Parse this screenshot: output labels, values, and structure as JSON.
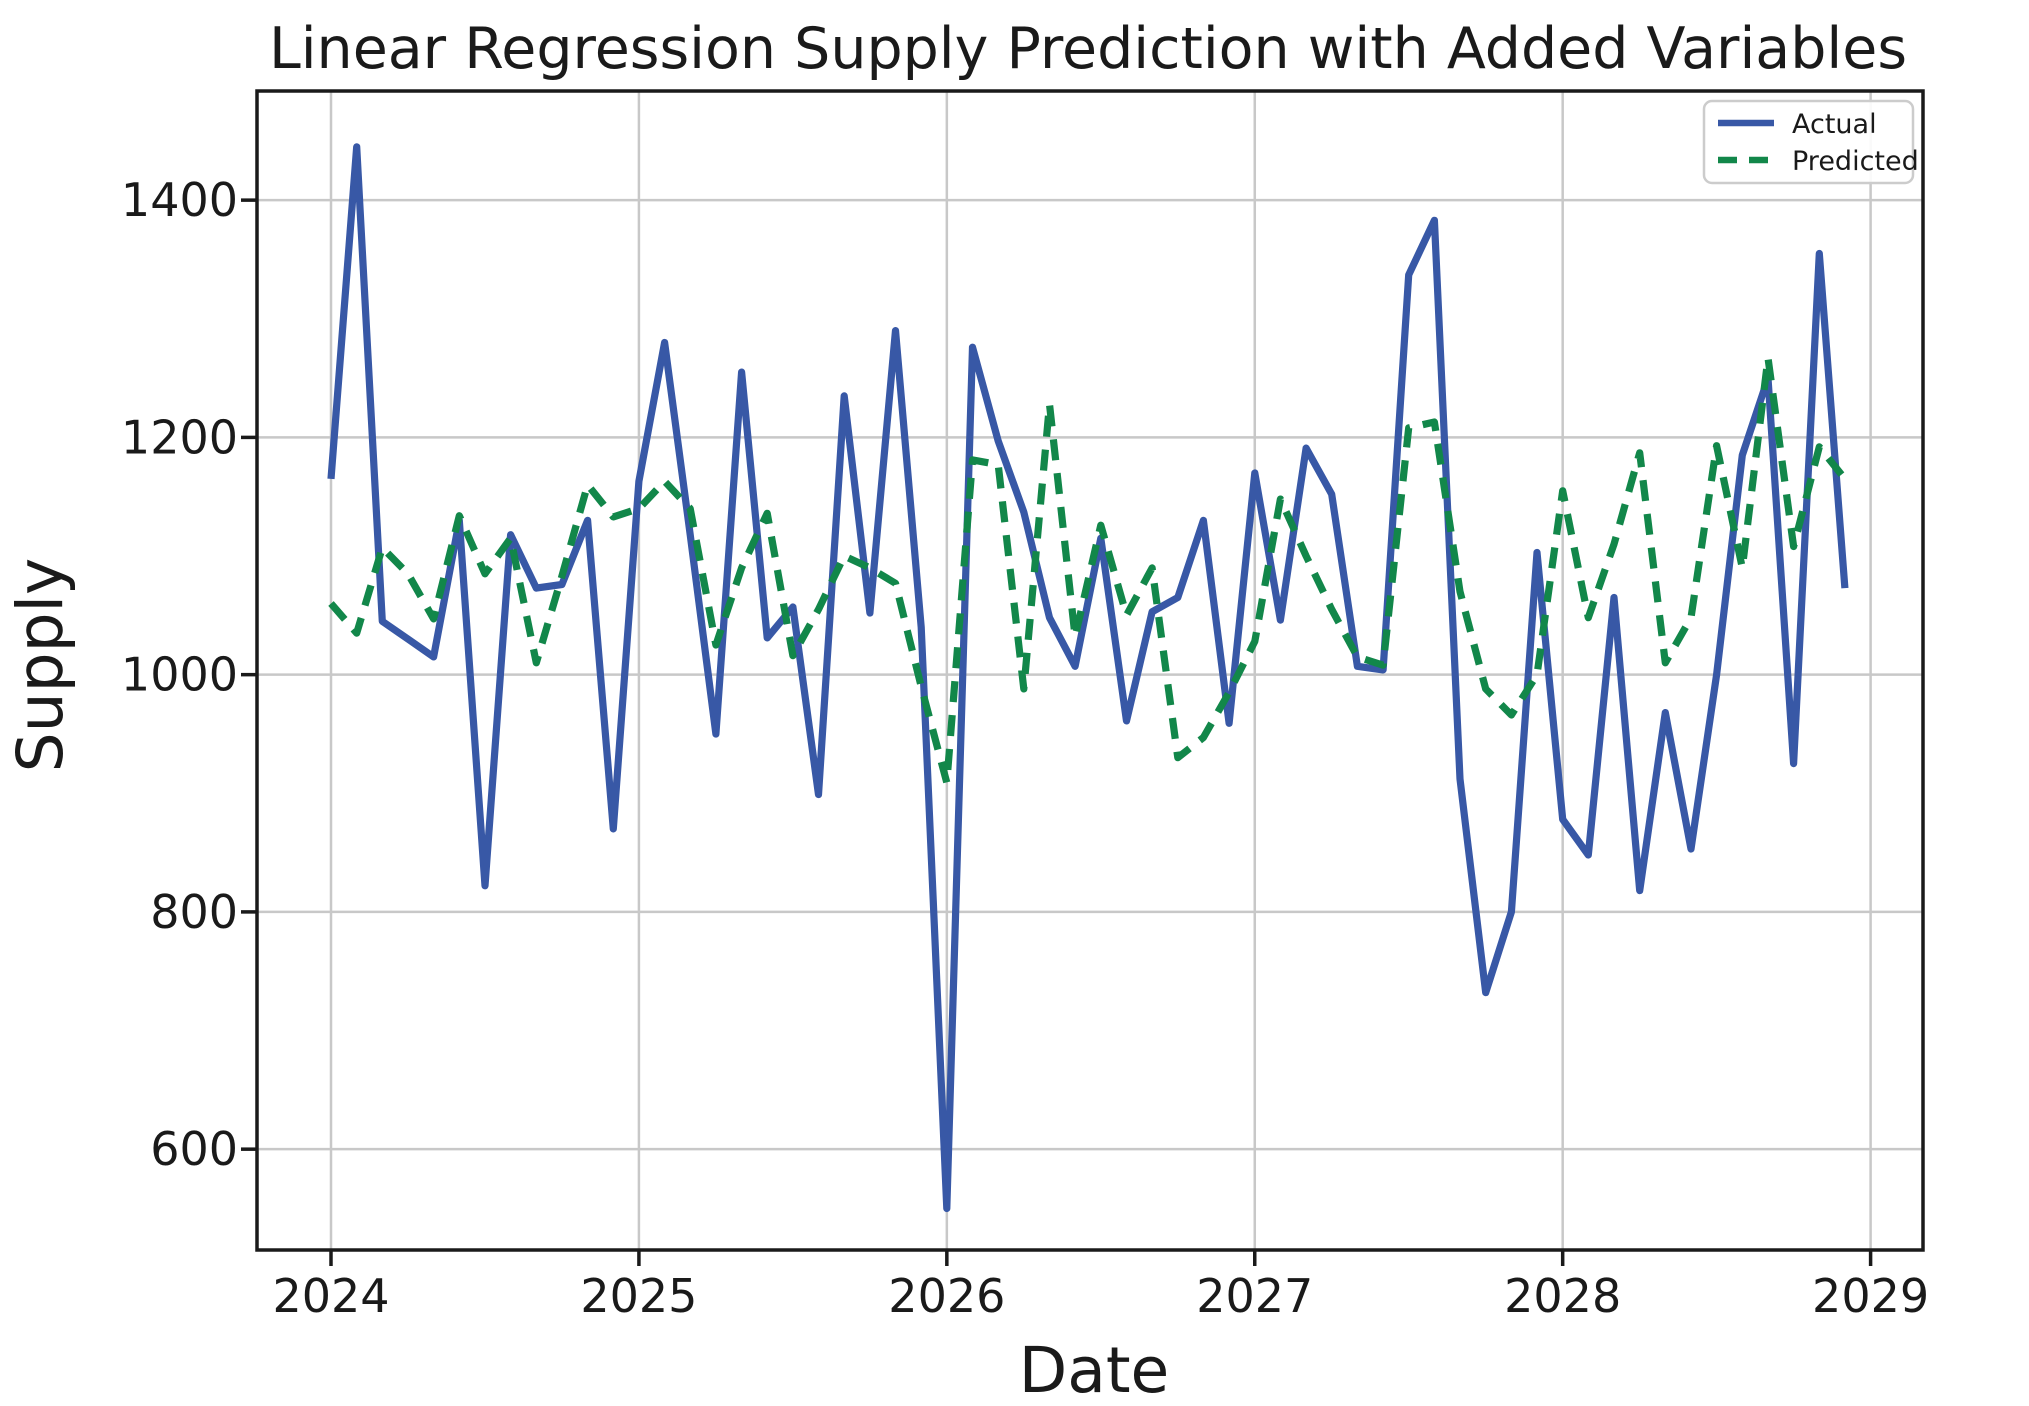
{
  "chart_data": {
    "type": "line",
    "title": "Linear Regression Supply Prediction with Added Variables",
    "xlabel": "Date",
    "ylabel": "Supply",
    "x_tick_labels": [
      "2024",
      "2025",
      "2026",
      "2027",
      "2028",
      "2029"
    ],
    "y_tick_labels": [
      "600",
      "800",
      "1000",
      "1200",
      "1400"
    ],
    "y_ticks": [
      600,
      800,
      1000,
      1200,
      1400
    ],
    "ylim": [
      515,
      1492
    ],
    "x_range_months": 60,
    "x_start": "2024-01",
    "x_end": "2028-12",
    "grid": true,
    "legend_position": "top-right",
    "colors": {
      "actual": "#3858a6",
      "predicted": "#12874a",
      "grid": "#c8c8c8",
      "spine": "#1a1a1a",
      "legend_border": "#cccccc",
      "background": "#ffffff"
    },
    "series": [
      {
        "name": "Actual",
        "style": "solid",
        "color": "#3858a6",
        "values": [
          1165,
          1445,
          1045,
          1030,
          1015,
          1130,
          822,
          1118,
          1073,
          1076,
          1130,
          870,
          1163,
          1280,
          1118,
          950,
          1255,
          1031,
          1057,
          899,
          1235,
          1052,
          1290,
          1040,
          550,
          1276,
          1197,
          1137,
          1048,
          1007,
          1115,
          961,
          1053,
          1065,
          1130,
          959,
          1170,
          1046,
          1191,
          1152,
          1007,
          1004,
          1337,
          1383,
          912,
          732,
          800,
          1103,
          878,
          848,
          1065,
          818,
          968,
          853,
          1000,
          1185,
          1250,
          925,
          1355,
          1073
        ]
      },
      {
        "name": "Predicted",
        "style": "dashed",
        "color": "#12874a",
        "values": [
          1060,
          1035,
          1107,
          1085,
          1047,
          1134,
          1085,
          1115,
          1010,
          1083,
          1160,
          1133,
          1140,
          1163,
          1140,
          1025,
          1090,
          1136,
          1016,
          1055,
          1100,
          1090,
          1077,
          990,
          909,
          1181,
          1177,
          988,
          1228,
          1032,
          1126,
          1050,
          1090,
          930,
          947,
          985,
          1028,
          1148,
          1100,
          1055,
          1015,
          1008,
          1208,
          1213,
          1070,
          988,
          966,
          1000,
          1155,
          1048,
          1110,
          1187,
          1010,
          1048,
          1193,
          1090,
          1267,
          1108,
          1192,
          1165
        ]
      }
    ]
  }
}
